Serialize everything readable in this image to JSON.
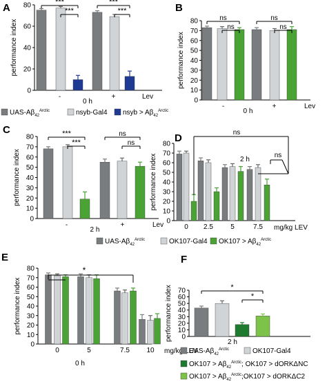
{
  "colors": {
    "uas": "#7a7d80",
    "ctrl": "#d0d4d6",
    "nsyb": "#1f3a93",
    "ok107": "#4aa334",
    "dnc": "#1d7a2e",
    "dc2": "#7dc349",
    "axis": "#000000"
  },
  "legends": {
    "ab": [
      {
        "label": "UAS-Aβ42Arctic",
        "color_key": "uas",
        "sub": "42",
        "sup": "Arctic",
        "base": "UAS-Aβ"
      },
      {
        "label": "nsyb-Gal4",
        "color_key": "ctrl",
        "base": "nsyb-Gal4"
      },
      {
        "label": "nsyb > Aβ42Arctic",
        "color_key": "nsyb",
        "sub": "42",
        "sup": "Arctic",
        "base": "nsyb > Aβ"
      }
    ],
    "cde": [
      {
        "label": "UAS-Aβ42Arctic",
        "color_key": "uas",
        "sub": "42",
        "sup": "Arctic",
        "base": "UAS-Aβ"
      },
      {
        "label": "OK107-Gal4",
        "color_key": "ctrl",
        "base": "OK107-Gal4"
      },
      {
        "label": "OK107 > Aβ42Arctic",
        "color_key": "ok107",
        "sub": "42",
        "sup": "Arctic",
        "base": "OK107 > Aβ"
      }
    ],
    "f": [
      {
        "label": "UAS-Aβ42Arctic",
        "color_key": "uas",
        "sub": "42",
        "sup": "Arctic",
        "base": "UAS-Aβ"
      },
      {
        "label": "OK107-Gal4",
        "color_key": "ctrl",
        "base": "OK107-Gal4"
      },
      {
        "label": "OK107 > Aβ42Arctic; OK107 > dORKΔNC",
        "color_key": "dnc",
        "base": "OK107 > Aβ",
        "sub": "42",
        "sup": "Arctic",
        "tail": "; OK107 > dORKΔNC"
      },
      {
        "label": "OK107 > Aβ42Arctic;OK107 > dORKΔC2",
        "color_key": "dc2",
        "base": "OK107 > Aβ",
        "sub": "42",
        "sup": "Arctic",
        "tail": ";OK107 > dORKΔC2"
      }
    ]
  },
  "chart_data": [
    {
      "panel": "A",
      "type": "bar",
      "ylabel": "performance index",
      "ylim": [
        0,
        80
      ],
      "yticks": [
        0,
        20,
        40,
        60,
        80
      ],
      "condition_label": "0 h",
      "lev_label": "Lev",
      "categories": [
        "-",
        "+"
      ],
      "series": [
        {
          "name": "UAS-Aβ42Arctic",
          "color_key": "uas",
          "values": [
            75,
            73
          ],
          "errors": [
            1.5,
            1.5
          ]
        },
        {
          "name": "nsyb-Gal4",
          "color_key": "ctrl",
          "values": [
            77,
            69
          ],
          "errors": [
            1.5,
            2
          ]
        },
        {
          "name": "nsyb > Aβ42Arctic",
          "color_key": "nsyb",
          "values": [
            10,
            13
          ],
          "errors": [
            4,
            5
          ]
        }
      ],
      "significance": [
        {
          "text": "***",
          "group": 0,
          "from": 0,
          "to": 2,
          "level": 2
        },
        {
          "text": "***",
          "group": 0,
          "from": 1,
          "to": 2,
          "level": 1
        },
        {
          "text": "***",
          "group": 1,
          "from": 0,
          "to": 2,
          "level": 2
        },
        {
          "text": "***",
          "group": 1,
          "from": 1,
          "to": 2,
          "level": 1
        }
      ]
    },
    {
      "panel": "B",
      "type": "bar",
      "ylabel": "performance index",
      "ylim": [
        0,
        80
      ],
      "yticks": [
        0,
        10,
        20,
        30,
        40,
        50,
        60,
        70,
        80
      ],
      "condition_label": "0 h",
      "lev_label": "Lev",
      "categories": [
        "-",
        "+"
      ],
      "series": [
        {
          "name": "UAS-Aβ42Arctic",
          "color_key": "uas",
          "values": [
            73,
            71
          ],
          "errors": [
            1.5,
            2
          ]
        },
        {
          "name": "nsyb-Gal4",
          "color_key": "ctrl",
          "values": [
            72,
            70
          ],
          "errors": [
            2,
            2
          ]
        },
        {
          "name": "nsyb > Aβ42Arctic",
          "color_key": "ok107",
          "values": [
            71,
            71
          ],
          "errors": [
            2,
            3
          ]
        }
      ],
      "significance": [
        {
          "text": "ns",
          "group": 0,
          "from": 0,
          "to": 2,
          "level": 2
        },
        {
          "text": "ns",
          "group": 0,
          "from": 1,
          "to": 2,
          "level": 1
        },
        {
          "text": "ns",
          "group": 1,
          "from": 0,
          "to": 2,
          "level": 2
        },
        {
          "text": "ns",
          "group": 1,
          "from": 1,
          "to": 2,
          "level": 1
        }
      ]
    },
    {
      "panel": "C",
      "type": "bar",
      "ylabel": "performance index",
      "ylim": [
        0,
        80
      ],
      "yticks": [
        0,
        10,
        20,
        30,
        40,
        50,
        60,
        70,
        80
      ],
      "condition_label": "2 h",
      "lev_label": "Lev",
      "categories": [
        "-",
        "+"
      ],
      "series": [
        {
          "name": "UAS-Aβ42Arctic",
          "color_key": "uas",
          "values": [
            68,
            55
          ],
          "errors": [
            2,
            3
          ]
        },
        {
          "name": "OK107-Gal4",
          "color_key": "ctrl",
          "values": [
            70,
            56
          ],
          "errors": [
            2,
            3
          ]
        },
        {
          "name": "OK107 > Aβ42Arctic",
          "color_key": "ok107",
          "values": [
            19,
            51
          ],
          "errors": [
            7,
            4
          ]
        }
      ],
      "significance": [
        {
          "text": "***",
          "group": 0,
          "from": 0,
          "to": 2,
          "level": 2
        },
        {
          "text": "***",
          "group": 0,
          "from": 1,
          "to": 2,
          "level": 1
        },
        {
          "text": "ns",
          "group": 1,
          "from": 0,
          "to": 2,
          "level": 2
        },
        {
          "text": "ns",
          "group": 1,
          "from": 1,
          "to": 2,
          "level": 1
        }
      ]
    },
    {
      "panel": "D",
      "type": "bar",
      "ylabel": "performance index",
      "ylim": [
        0,
        80
      ],
      "yticks": [
        0,
        10,
        20,
        30,
        40,
        50,
        60,
        70,
        80
      ],
      "condition_label": "2 h",
      "xunit": "mg/kg LEV",
      "categories": [
        "0",
        "2.5",
        "5",
        "7.5"
      ],
      "series": [
        {
          "name": "UAS-Aβ42Arctic",
          "color_key": "uas",
          "values": [
            69,
            62,
            55,
            53
          ],
          "errors": [
            3,
            3,
            3,
            3
          ]
        },
        {
          "name": "OK107-Gal4",
          "color_key": "ctrl",
          "values": [
            70,
            60,
            56,
            55
          ],
          "errors": [
            2,
            3,
            3,
            3
          ]
        },
        {
          "name": "OK107 > Aβ42Arctic",
          "color_key": "ok107",
          "values": [
            20,
            30,
            51,
            37
          ],
          "errors": [
            7,
            4,
            5,
            6
          ]
        }
      ],
      "significance": [
        {
          "text": "ns",
          "type": "wide"
        },
        {
          "text": "ns",
          "type": "small"
        }
      ]
    },
    {
      "panel": "E",
      "type": "bar",
      "ylabel": "performance index",
      "ylim": [
        0,
        80
      ],
      "yticks": [
        0,
        10,
        20,
        30,
        40,
        50,
        60,
        70,
        80
      ],
      "condition_label": "0 h",
      "xunit": "mg/kg LEV",
      "categories": [
        "0",
        "5",
        "7.5",
        "10"
      ],
      "series": [
        {
          "name": "UAS-Aβ42Arctic",
          "color_key": "uas",
          "values": [
            73,
            71,
            56,
            26
          ],
          "errors": [
            2,
            3,
            3,
            5
          ]
        },
        {
          "name": "OK107-Gal4",
          "color_key": "ctrl",
          "values": [
            72,
            70,
            54,
            25
          ],
          "errors": [
            2,
            3,
            3,
            5
          ]
        },
        {
          "name": "OK107 > Aβ42Arctic",
          "color_key": "ok107",
          "values": [
            71,
            69,
            56,
            27
          ],
          "errors": [
            2,
            4,
            3,
            5
          ]
        }
      ],
      "significance": [
        {
          "text": "*",
          "type": "bracket"
        }
      ]
    },
    {
      "panel": "F",
      "type": "bar",
      "ylabel": "performance index",
      "ylim": [
        0,
        70
      ],
      "yticks": [
        0,
        10,
        20,
        30,
        40,
        50,
        60,
        70
      ],
      "condition_label": "2 h",
      "categories": [
        "2 h"
      ],
      "series": [
        {
          "name": "UAS-Aβ42Arctic",
          "color_key": "uas",
          "values": [
            43
          ],
          "errors": [
            3
          ]
        },
        {
          "name": "OK107-Gal4",
          "color_key": "ctrl",
          "values": [
            50
          ],
          "errors": [
            4
          ]
        },
        {
          "name": "OK107 > Aβ42Arctic; OK107 > dORKΔNC",
          "color_key": "dnc",
          "values": [
            18
          ],
          "errors": [
            3
          ]
        },
        {
          "name": "OK107 > Aβ42Arctic;OK107 > dORKΔC2",
          "color_key": "dc2",
          "values": [
            31
          ],
          "errors": [
            3
          ]
        }
      ],
      "significance": [
        {
          "text": "*",
          "from": 0,
          "to": 3,
          "level": 2
        },
        {
          "text": "*",
          "from": 2,
          "to": 3,
          "level": 1
        }
      ]
    }
  ]
}
